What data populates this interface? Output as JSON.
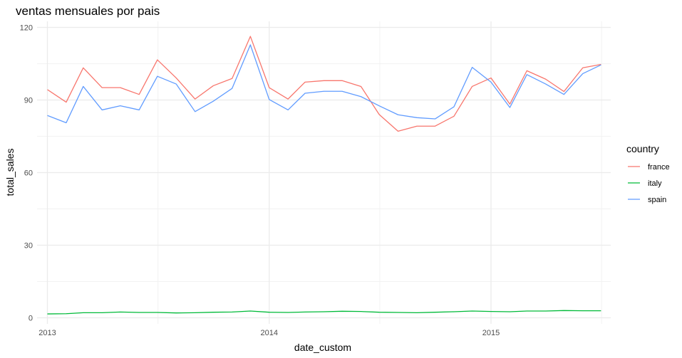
{
  "chart_data": {
    "type": "line",
    "title": "ventas mensuales por pais",
    "xlabel": "date_custom",
    "ylabel": "total_sales",
    "ylim": [
      -2.5,
      122.5
    ],
    "xlim": [
      "2012-12-15",
      "2015-07-17"
    ],
    "y_ticks": [
      0,
      30,
      60,
      90,
      120
    ],
    "x_ticks": [
      {
        "date": "2013-01-01",
        "label": "2013"
      },
      {
        "date": "2014-01-01",
        "label": "2014"
      },
      {
        "date": "2015-01-01",
        "label": "2015"
      }
    ],
    "x_minor_breaks": [
      "2013-07-02",
      "2014-07-02",
      "2015-07-02"
    ],
    "grid": true,
    "legend": {
      "title": "country",
      "position": "right"
    },
    "x": [
      "2013-01-01",
      "2013-02-01",
      "2013-03-01",
      "2013-04-01",
      "2013-05-01",
      "2013-06-01",
      "2013-07-01",
      "2013-08-01",
      "2013-09-01",
      "2013-10-01",
      "2013-11-01",
      "2013-12-01",
      "2014-01-01",
      "2014-02-01",
      "2014-03-01",
      "2014-04-01",
      "2014-05-01",
      "2014-06-01",
      "2014-07-01",
      "2014-08-01",
      "2014-09-01",
      "2014-10-01",
      "2014-11-01",
      "2014-12-01",
      "2015-01-01",
      "2015-02-01",
      "2015-03-01",
      "2015-04-01",
      "2015-05-01",
      "2015-06-01",
      "2015-07-01"
    ],
    "series": [
      {
        "name": "france",
        "color": "#F8766D",
        "values": [
          94.3,
          89.1,
          103.3,
          95.1,
          95.1,
          92.3,
          106.6,
          99.1,
          90.4,
          95.9,
          98.9,
          116.3,
          95.1,
          90.4,
          97.4,
          98.0,
          98.0,
          95.6,
          84.0,
          77.1,
          79.2,
          79.2,
          83.3,
          95.6,
          99.1,
          88.3,
          102.1,
          98.6,
          93.5,
          103.3,
          104.7
        ]
      },
      {
        "name": "italy",
        "color": "#00BA38",
        "values": [
          1.6,
          1.7,
          2.1,
          2.1,
          2.4,
          2.2,
          2.2,
          2.0,
          2.1,
          2.3,
          2.4,
          2.8,
          2.3,
          2.2,
          2.4,
          2.5,
          2.7,
          2.6,
          2.3,
          2.2,
          2.1,
          2.3,
          2.5,
          2.8,
          2.6,
          2.5,
          2.8,
          2.8,
          3.0,
          2.9,
          2.9
        ]
      },
      {
        "name": "spain",
        "color": "#619CFF",
        "values": [
          83.6,
          80.6,
          95.6,
          85.9,
          87.6,
          85.9,
          99.8,
          96.6,
          85.2,
          89.5,
          94.8,
          112.8,
          90.2,
          85.9,
          92.8,
          93.6,
          93.6,
          91.4,
          87.6,
          83.9,
          82.7,
          82.2,
          87.2,
          103.5,
          97.4,
          86.9,
          100.5,
          96.6,
          92.3,
          100.9,
          104.5
        ]
      }
    ]
  }
}
